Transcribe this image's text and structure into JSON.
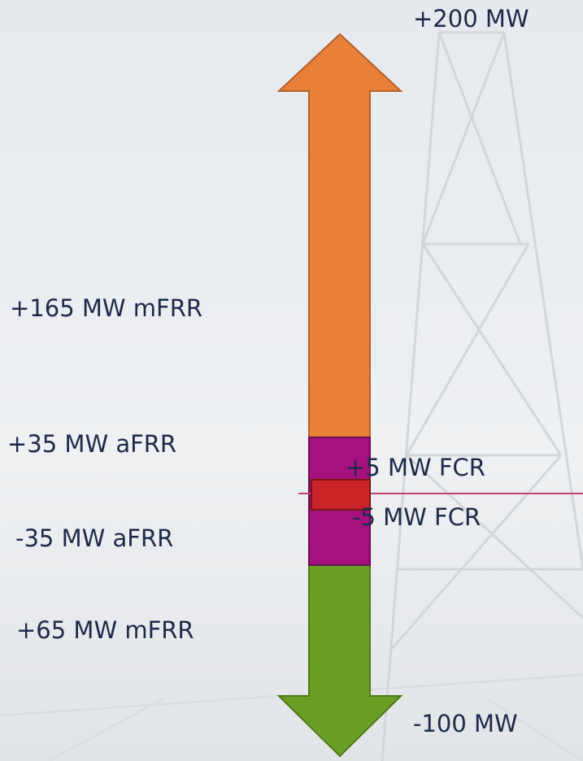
{
  "labels": {
    "upper_limit": "+200 MW",
    "upper_mfrr": "+165 MW mFRR",
    "upper_afrr": "+35 MW aFRR",
    "upper_fcr": "+5 MW FCR",
    "lower_fcr": "-5 MW FCR",
    "lower_afrr": "-35 MW aFRR",
    "lower_mfrr": "+65 MW mFRR",
    "lower_limit": "-100 MW"
  }
}
